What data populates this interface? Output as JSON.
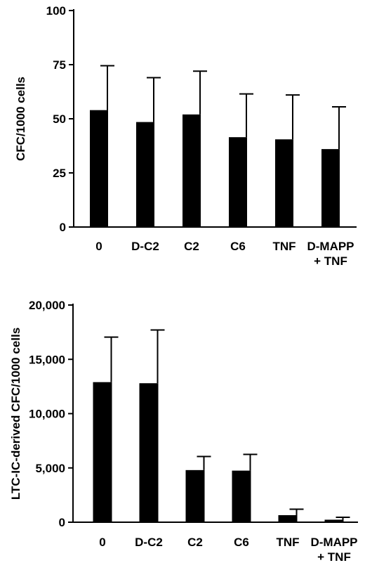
{
  "chart_data": [
    {
      "type": "bar",
      "categories": [
        "0",
        "D-C2",
        "C2",
        "C6",
        "TNF",
        [
          "D-MAPP",
          "+ TNF"
        ]
      ],
      "values": [
        54,
        48.5,
        52,
        41.5,
        40.5,
        36
      ],
      "error_plus": [
        20.5,
        20.5,
        20,
        20,
        20.5,
        19.5
      ],
      "xlabel": "",
      "ylabel": "CFC/1000 cells",
      "ylim": [
        0,
        100
      ],
      "yticks": [
        0,
        25,
        50,
        75,
        100
      ],
      "ytick_labels": [
        "0",
        "25",
        "50",
        "75",
        "100"
      ],
      "bar_color": "#000000",
      "grid": false
    },
    {
      "type": "bar",
      "categories": [
        "0",
        "D-C2",
        "C2",
        "C6",
        "TNF",
        [
          "D-MAPP",
          "+ TNF"
        ]
      ],
      "values": [
        12900,
        12800,
        4800,
        4750,
        650,
        230
      ],
      "error_plus": [
        4150,
        4900,
        1250,
        1500,
        550,
        220
      ],
      "xlabel": "",
      "ylabel": "LTC-IC-derived CFC/1000  cells",
      "ylim": [
        0,
        20000
      ],
      "yticks": [
        0,
        5000,
        10000,
        15000,
        20000
      ],
      "ytick_labels": [
        "0",
        "5,000",
        "10,000",
        "15,000",
        "20,000"
      ],
      "bar_color": "#000000",
      "grid": false
    }
  ]
}
